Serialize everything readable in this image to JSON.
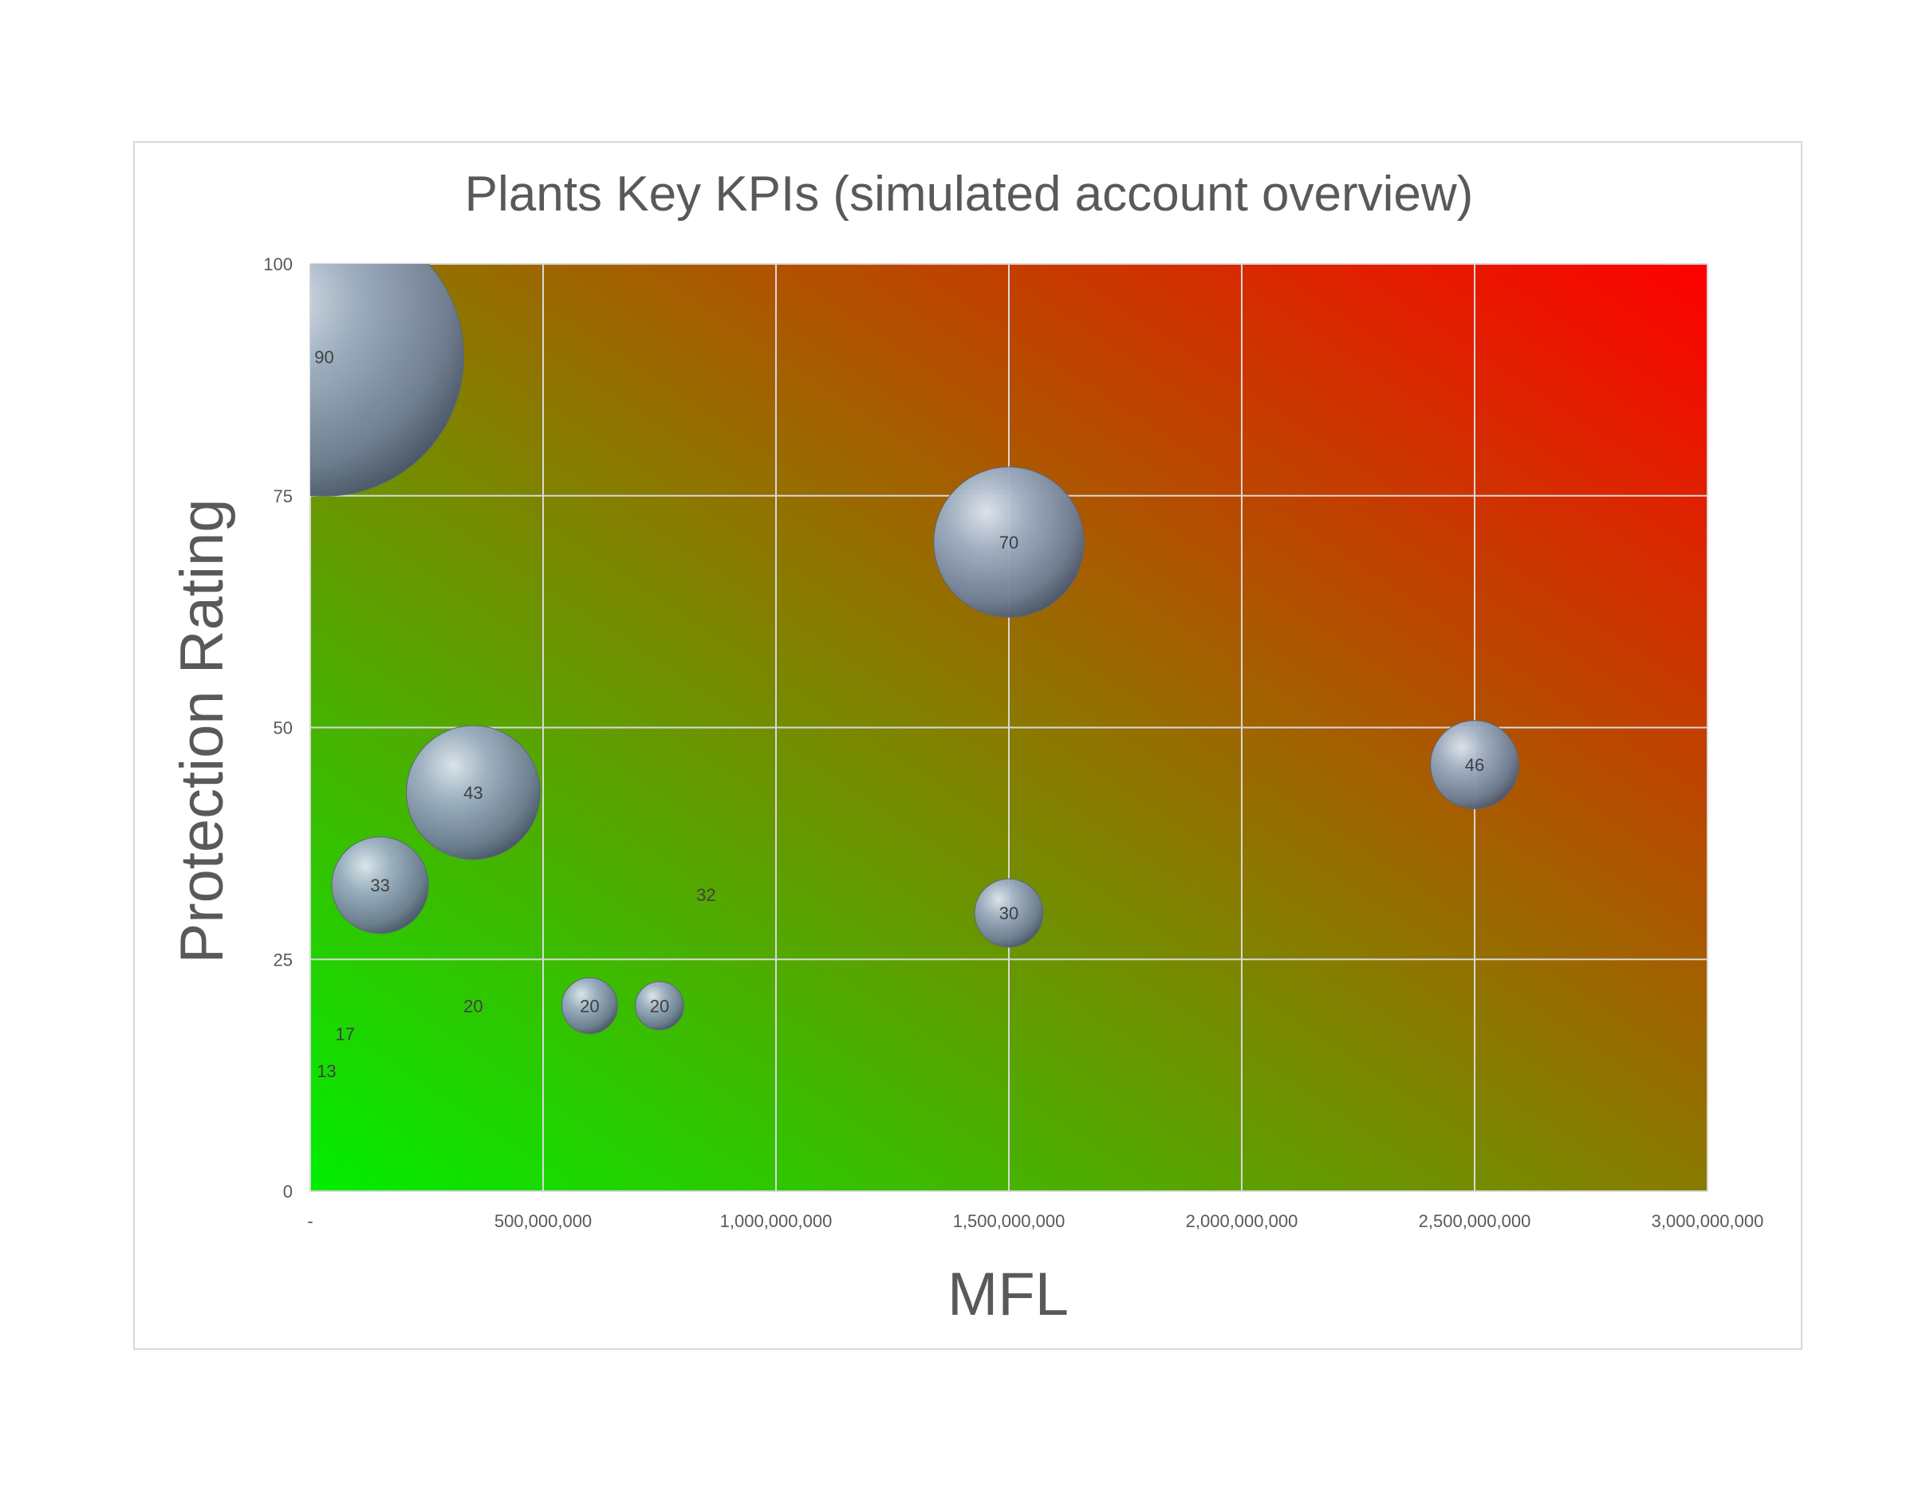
{
  "chart_data": {
    "type": "bubble",
    "title": "Plants Key KPIs (simulated account overview)",
    "xlabel": "MFL",
    "ylabel": "Protection Rating",
    "xlim": [
      0,
      3000000000
    ],
    "ylim": [
      0,
      100
    ],
    "x_ticks": [
      0,
      500000000,
      1000000000,
      1500000000,
      2000000000,
      2500000000,
      3000000000
    ],
    "x_tick_labels": [
      "-",
      "500,000,000",
      "1,000,000,000",
      "1,500,000,000",
      "2,000,000,000",
      "2,500,000,000",
      "3,000,000,000"
    ],
    "y_ticks": [
      0,
      25,
      50,
      75,
      100
    ],
    "y_tick_labels": [
      "0",
      "25",
      "50",
      "75",
      "100"
    ],
    "grid": true,
    "legend": "none",
    "background_gradient": {
      "bottom_left": "#00ee00",
      "top_right": "#ff0000"
    },
    "bubble_color": "#8e9cb0",
    "points": [
      {
        "x": 30000000,
        "y": 90,
        "label": "90",
        "size": 100
      },
      {
        "x": 1500000000,
        "y": 70,
        "label": "70",
        "size": 29
      },
      {
        "x": 2500000000,
        "y": 46,
        "label": "46",
        "size": 10
      },
      {
        "x": 350000000,
        "y": 43,
        "label": "43",
        "size": 23
      },
      {
        "x": 150000000,
        "y": 33,
        "label": "33",
        "size": 12
      },
      {
        "x": 850000000,
        "y": 32,
        "label": "32",
        "size": 0
      },
      {
        "x": 1500000000,
        "y": 30,
        "label": "30",
        "size": 6
      },
      {
        "x": 350000000,
        "y": 20,
        "label": "20",
        "size": 0
      },
      {
        "x": 600000000,
        "y": 20,
        "label": "20",
        "size": 4
      },
      {
        "x": 750000000,
        "y": 20,
        "label": "20",
        "size": 3
      },
      {
        "x": 75000000,
        "y": 17,
        "label": "17",
        "size": 0
      },
      {
        "x": 35000000,
        "y": 13,
        "label": "13",
        "size": 0
      }
    ]
  }
}
